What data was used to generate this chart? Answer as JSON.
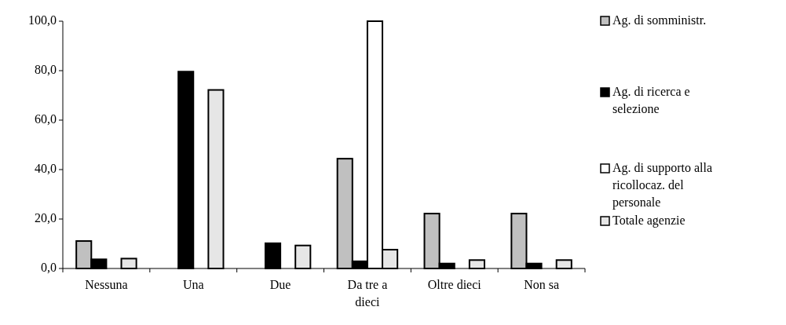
{
  "chart_data": {
    "type": "bar",
    "categories": [
      "Nessuna",
      "Una",
      "Due",
      "Da tre a dieci",
      "Oltre dieci",
      "Non sa"
    ],
    "series": [
      {
        "name": "Ag. di somministr.",
        "color": "#c0c0c0",
        "values": [
          11.1,
          0,
          0,
          44.4,
          22.2,
          22.2
        ]
      },
      {
        "name": "Ag. di ricerca e selezione",
        "color": "#000000",
        "values": [
          3.7,
          79.6,
          10.2,
          2.9,
          2.0,
          2.0
        ]
      },
      {
        "name": "Ag. di supporto alla ricollocaz. del personale",
        "color": "#ffffff",
        "values": [
          0,
          0,
          0,
          100,
          0,
          0
        ]
      },
      {
        "name": "Totale agenzie",
        "color": "#e6e6e6",
        "values": [
          4.0,
          72.2,
          9.3,
          7.6,
          3.4,
          3.4
        ]
      }
    ],
    "ylim": [
      0,
      100
    ],
    "yticks": [
      {
        "value": 0,
        "label": "0,0"
      },
      {
        "value": 20,
        "label": "20,0"
      },
      {
        "value": 40,
        "label": "40,0"
      },
      {
        "value": 60,
        "label": "60,0"
      },
      {
        "value": 80,
        "label": "80,0"
      },
      {
        "value": 100,
        "label": "100,0"
      }
    ],
    "legend": "right",
    "grid": false
  }
}
